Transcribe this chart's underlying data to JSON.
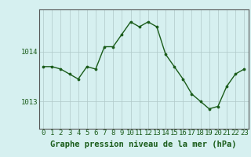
{
  "hours": [
    0,
    1,
    2,
    3,
    4,
    5,
    6,
    7,
    8,
    9,
    10,
    11,
    12,
    13,
    14,
    15,
    16,
    17,
    18,
    19,
    20,
    21,
    22,
    23
  ],
  "pressure": [
    1013.7,
    1013.7,
    1013.65,
    1013.55,
    1013.45,
    1013.7,
    1013.65,
    1014.1,
    1014.1,
    1014.35,
    1014.6,
    1014.5,
    1014.6,
    1014.5,
    1013.95,
    1013.7,
    1013.45,
    1013.15,
    1013.0,
    1012.85,
    1012.9,
    1013.3,
    1013.55,
    1013.65
  ],
  "line_color": "#1a5c1a",
  "marker": "o",
  "marker_size": 2.2,
  "bg_color": "#d6f0f0",
  "grid_color": "#b0c8c8",
  "ylabel_ticks": [
    1013,
    1014
  ],
  "ylim": [
    1012.45,
    1014.85
  ],
  "xlim": [
    -0.5,
    23.5
  ],
  "xlabel": "Graphe pression niveau de la mer (hPa)",
  "xlabel_fontsize": 7.5,
  "tick_fontsize": 6.5,
  "line_width": 1.0,
  "axes_color": "#1a5c1a",
  "spine_color": "#555555"
}
